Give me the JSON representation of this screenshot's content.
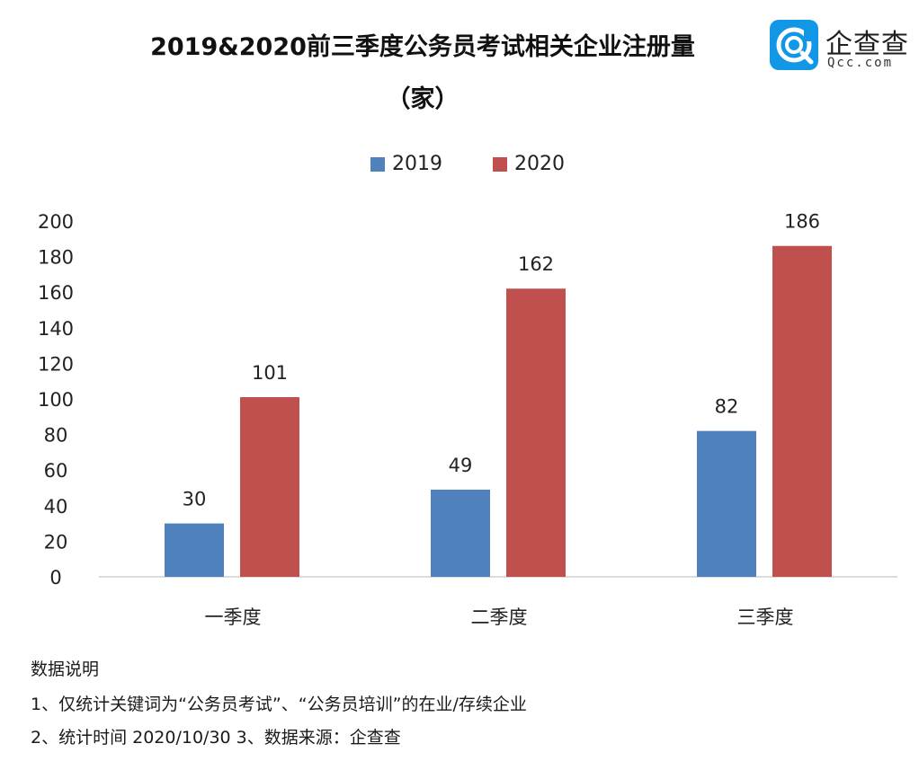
{
  "title_line1": "2019&2020前三季度公务员考试相关企业注册量",
  "title_line2": "（家）",
  "logo": {
    "name": "企查查",
    "domain": "Qcc.com",
    "brand_color": "#1296e6"
  },
  "notes": [
    "数据说明",
    "1、仅统计关键词为“公务员考试”、“公务员培训”的在业/存续企业",
    "2、统计时间 2020/10/30      3、数据来源：企查查"
  ],
  "chart_data": {
    "type": "bar",
    "categories": [
      "一季度",
      "二季度",
      "三季度"
    ],
    "series": [
      {
        "name": "2019",
        "color": "#4f81bd",
        "values": [
          30,
          49,
          82
        ]
      },
      {
        "name": "2020",
        "color": "#c0504d",
        "values": [
          101,
          162,
          186
        ]
      }
    ],
    "ylim": [
      0,
      200
    ],
    "yticks": [
      "0",
      "20",
      "40",
      "60",
      "80",
      "100",
      "120",
      "140",
      "160",
      "180",
      "200"
    ],
    "grid": false,
    "legend_position": "top-center",
    "data_labels": true
  }
}
